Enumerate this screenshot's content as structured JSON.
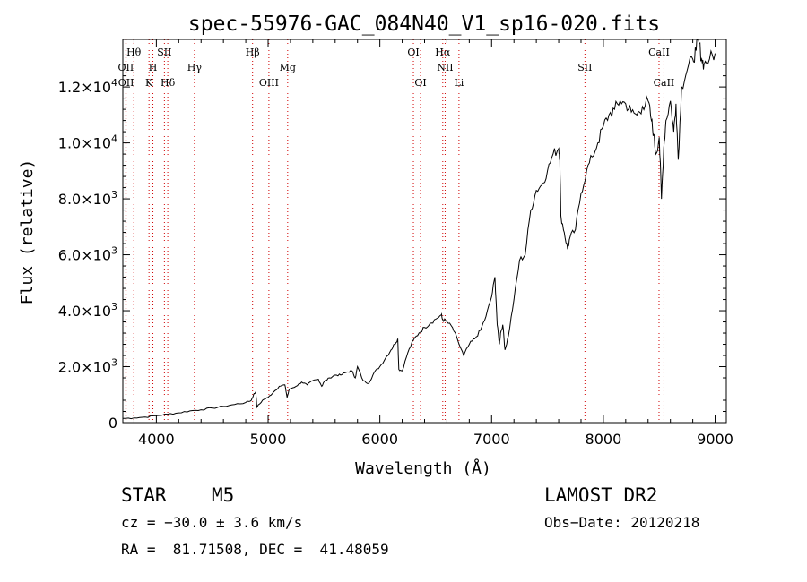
{
  "chart_data": {
    "type": "line",
    "title": "spec-55976-GAC_084N40_V1_sp16-020.fits",
    "xlabel": "Wavelength (Å)",
    "ylabel": "Flux (relative)",
    "xlim": [
      3700,
      9100
    ],
    "ylim": [
      0,
      13700
    ],
    "x_ticks": [
      {
        "value": 4000,
        "label": "4000"
      },
      {
        "value": 5000,
        "label": "5000"
      },
      {
        "value": 6000,
        "label": "6000"
      },
      {
        "value": 7000,
        "label": "7000"
      },
      {
        "value": 8000,
        "label": "8000"
      },
      {
        "value": 9000,
        "label": "9000"
      }
    ],
    "y_ticks": [
      {
        "value": 0,
        "mant": "0",
        "exp": ""
      },
      {
        "value": 2000,
        "mant": "2.0×10",
        "exp": "3"
      },
      {
        "value": 4000,
        "mant": "4.0×10",
        "exp": "3"
      },
      {
        "value": 6000,
        "mant": "6.0×10",
        "exp": "3"
      },
      {
        "value": 8000,
        "mant": "8.0×10",
        "exp": "3"
      },
      {
        "value": 10000,
        "mant": "1.0×10",
        "exp": "4"
      },
      {
        "value": 12000,
        "mant": "1.2×10",
        "exp": "4"
      }
    ],
    "lines": [
      {
        "label": "Hθ",
        "wave": 3798,
        "row": 0
      },
      {
        "label": "OII",
        "wave": 3727,
        "row": 1
      },
      {
        "label": "OII",
        "wave": 3729,
        "row": 2
      },
      {
        "label": "H",
        "wave": 3969,
        "row": 1
      },
      {
        "label": "K",
        "wave": 3934,
        "row": 2
      },
      {
        "label": "SII",
        "wave": 4072,
        "row": 0
      },
      {
        "label": "Hδ",
        "wave": 4102,
        "row": 2
      },
      {
        "label": "Hγ",
        "wave": 4341,
        "row": 1
      },
      {
        "label": "Hβ",
        "wave": 4861,
        "row": 0
      },
      {
        "label": "OIII",
        "wave": 5007,
        "row": 2
      },
      {
        "label": "Mg",
        "wave": 5175,
        "row": 1
      },
      {
        "label": "OI",
        "wave": 6300,
        "row": 0
      },
      {
        "label": "OI",
        "wave": 6364,
        "row": 2
      },
      {
        "label": "Hα",
        "wave": 6563,
        "row": 0
      },
      {
        "label": "NII",
        "wave": 6584,
        "row": 1
      },
      {
        "label": "Li",
        "wave": 6708,
        "row": 2
      },
      {
        "label": "SII",
        "wave": 7835,
        "row": 1
      },
      {
        "label": "CaII",
        "wave": 8498,
        "row": 0
      },
      {
        "label": "CaII",
        "wave": 8542,
        "row": 2
      }
    ],
    "series": [
      {
        "color": "#000000",
        "x": [
          3700,
          3800,
          3900,
          4000,
          4100,
          4200,
          4300,
          4400,
          4500,
          4600,
          4700,
          4800,
          4850,
          4870,
          4890,
          4900,
          4950,
          5000,
          5050,
          5100,
          5150,
          5170,
          5190,
          5250,
          5300,
          5350,
          5400,
          5450,
          5480,
          5500,
          5550,
          5600,
          5650,
          5700,
          5750,
          5780,
          5800,
          5850,
          5900,
          5950,
          6000,
          6050,
          6100,
          6130,
          6160,
          6170,
          6200,
          6250,
          6300,
          6350,
          6400,
          6450,
          6500,
          6550,
          6560,
          6600,
          6650,
          6700,
          6750,
          6800,
          6850,
          6900,
          6950,
          7000,
          7030,
          7050,
          7070,
          7080,
          7100,
          7120,
          7150,
          7200,
          7250,
          7300,
          7350,
          7400,
          7450,
          7500,
          7550,
          7600,
          7610,
          7620,
          7650,
          7680,
          7700,
          7750,
          7800,
          7850,
          7900,
          7950,
          8000,
          8050,
          8100,
          8150,
          8200,
          8250,
          8300,
          8350,
          8400,
          8430,
          8450,
          8470,
          8500,
          8520,
          8540,
          8560,
          8600,
          8630,
          8650,
          8670,
          8700,
          8750,
          8800,
          8830,
          8850,
          8880,
          8900,
          8950,
          9000
        ],
        "y": [
          150,
          170,
          200,
          250,
          300,
          350,
          420,
          460,
          520,
          580,
          650,
          720,
          800,
          1000,
          1100,
          550,
          800,
          900,
          1100,
          1300,
          1350,
          900,
          1200,
          1300,
          1450,
          1350,
          1500,
          1550,
          1300,
          1450,
          1600,
          1700,
          1700,
          1800,
          1850,
          1600,
          2000,
          1500,
          1400,
          1800,
          2000,
          2300,
          2600,
          2800,
          3000,
          1900,
          1850,
          2500,
          2950,
          3200,
          3400,
          3550,
          3700,
          3850,
          3700,
          3600,
          3400,
          2900,
          2400,
          2800,
          3000,
          3300,
          3800,
          4500,
          5200,
          3500,
          2800,
          3200,
          3500,
          2600,
          3100,
          4400,
          5800,
          6000,
          7600,
          8300,
          8500,
          9000,
          9600,
          9800,
          9500,
          7400,
          6800,
          6200,
          6600,
          6900,
          8200,
          9000,
          9500,
          10000,
          10600,
          11000,
          11200,
          11500,
          11400,
          11100,
          11000,
          11300,
          11500,
          10800,
          10300,
          9600,
          10200,
          8000,
          9800,
          10800,
          11500,
          10400,
          11400,
          9400,
          12000,
          12600,
          13000,
          13300,
          13700,
          13000,
          12800,
          13000,
          13200
        ]
      }
    ]
  },
  "info": {
    "object_type": "STAR",
    "subclass": "M5",
    "survey": "LAMOST DR2",
    "cz": "cz = −30.0 ± 3.6 km/s",
    "obs_date": "Obs−Date: 20120218",
    "coords": "RA =  81.71508, DEC =  41.48059"
  },
  "colors": {
    "line_markers": "#d00000",
    "spectrum": "#000000"
  }
}
